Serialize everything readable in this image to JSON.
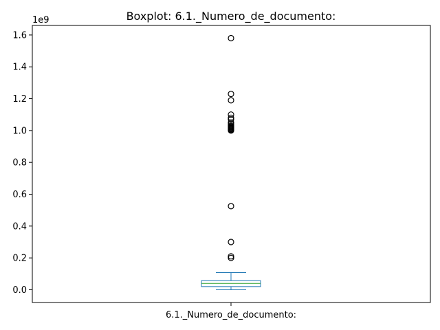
{
  "chart_data": {
    "type": "box",
    "title": "Boxplot: 6.1._Numero_de_documento:",
    "category": "6.1._Numero_de_documento:",
    "y_offset_label": "1e9",
    "y_scale": 1000000000,
    "ylim": [
      -0.08,
      1.66
    ],
    "yticks": [
      0.0,
      0.2,
      0.4,
      0.6,
      0.8,
      1.0,
      1.2,
      1.4,
      1.6
    ],
    "ytick_labels": [
      "0.0",
      "0.2",
      "0.4",
      "0.6",
      "0.8",
      "1.0",
      "1.2",
      "1.4",
      "1.6"
    ],
    "box": {
      "whisker_low": 0.0,
      "q1": 0.02,
      "median": 0.04,
      "q3": 0.057,
      "whisker_high": 0.108
    },
    "outliers": [
      1.58,
      1.23,
      1.19,
      1.1,
      1.08,
      1.07,
      1.05,
      1.04,
      1.03,
      1.025,
      1.02,
      1.015,
      1.01,
      1.005,
      1.0,
      0.525,
      0.3,
      0.21,
      0.2
    ],
    "colors": {
      "box": "#1f77b4",
      "median": "#2ca02c",
      "outlier": "#000000",
      "axes": "#000000"
    }
  }
}
